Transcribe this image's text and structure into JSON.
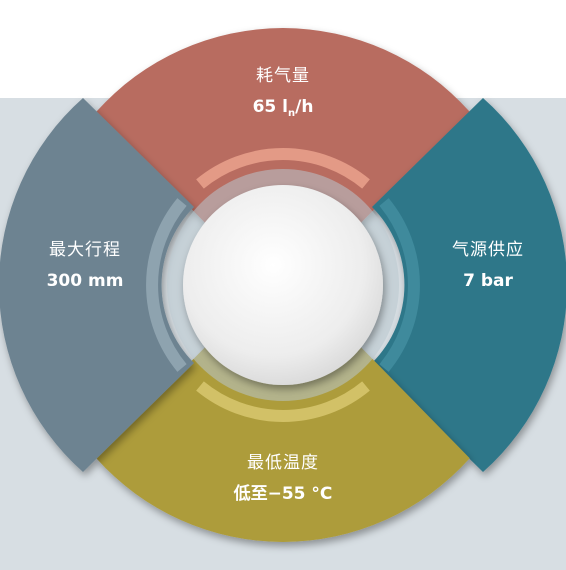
{
  "segments": {
    "top": {
      "title": "耗气量",
      "value_pre": "65 l",
      "value_sub": "n",
      "value_post": "/h",
      "color": "#b86c60"
    },
    "right": {
      "title": "气源供应",
      "value": "7 bar",
      "color": "#2f7789"
    },
    "bottom": {
      "title": "最低温度",
      "value": "低至−55 °C",
      "color": "#ad9c3b"
    },
    "left": {
      "title": "最大行程",
      "value": "300 mm",
      "color": "#6d8391"
    }
  },
  "colors": {
    "panel": "#d7dee3",
    "center_disc": "#f2f2f2",
    "inner_ring": "#9fb3be"
  }
}
